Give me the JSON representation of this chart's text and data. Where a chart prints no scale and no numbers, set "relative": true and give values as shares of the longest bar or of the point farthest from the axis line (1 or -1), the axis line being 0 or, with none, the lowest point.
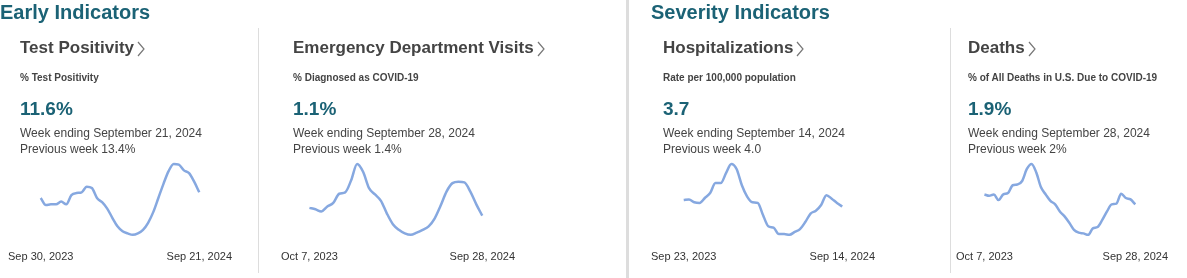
{
  "chart_data": [
    {
      "type": "line",
      "title": "Test Positivity",
      "subtitle": "% Test Positivity",
      "annotations": [
        "11.6%",
        "Week ending September 21, 2024",
        "Previous week 13.4%",
        "Early Indicators"
      ],
      "relative": true,
      "color": "#86a8e0",
      "categories": [
        "Sep 30, 2023",
        null,
        null,
        null,
        null,
        null,
        null,
        null,
        null,
        null,
        null,
        null,
        null,
        null,
        null,
        null,
        null,
        null,
        null,
        null,
        null,
        null,
        null,
        null,
        null,
        null,
        null,
        null,
        null,
        null,
        null,
        "Sep 21, 2024"
      ],
      "values": [
        0.52,
        0.42,
        0.43,
        0.43,
        0.47,
        0.43,
        0.56,
        0.59,
        0.6,
        0.68,
        0.66,
        0.52,
        0.46,
        0.37,
        0.24,
        0.12,
        0.05,
        0.02,
        0,
        0.02,
        0.07,
        0.17,
        0.32,
        0.52,
        0.72,
        0.9,
        1,
        0.99,
        0.91,
        0.87,
        0.75,
        0.6
      ]
    },
    {
      "type": "line",
      "title": "Emergency Department Visits",
      "subtitle": "% Diagnosed as COVID-19",
      "annotations": [
        "1.1%",
        "Week ending September 28, 2024",
        "Previous week 1.4%"
      ],
      "relative": true,
      "color": "#86a8e0",
      "categories": [
        "Oct 7, 2023",
        null,
        null,
        null,
        null,
        null,
        null,
        null,
        null,
        null,
        null,
        null,
        null,
        null,
        null,
        null,
        null,
        null,
        null,
        null,
        null,
        null,
        null,
        null,
        null,
        null,
        null,
        null,
        null,
        "Sep 28, 2024"
      ],
      "values": [
        0.38,
        0.36,
        0.33,
        0.4,
        0.45,
        0.58,
        0.6,
        0.77,
        1,
        0.89,
        0.66,
        0.57,
        0.48,
        0.3,
        0.15,
        0.07,
        0.02,
        0,
        0.03,
        0.07,
        0.12,
        0.23,
        0.41,
        0.61,
        0.73,
        0.75,
        0.74,
        0.61,
        0.43,
        0.27
      ]
    },
    {
      "type": "line",
      "title": "Hospitalizations",
      "subtitle": "Rate per 100,000 population",
      "annotations": [
        "3.7",
        "Week ending September 14, 2024",
        "Previous week 4.0",
        "Severity Indicators"
      ],
      "relative": true,
      "color": "#86a8e0",
      "categories": [
        "Sep 23, 2023",
        null,
        null,
        null,
        null,
        null,
        null,
        null,
        null,
        null,
        null,
        null,
        null,
        null,
        null,
        null,
        null,
        null,
        null,
        null,
        null,
        null,
        null,
        null,
        null,
        null,
        null,
        null,
        null,
        null,
        "Sep 14, 2024"
      ],
      "values": [
        0.49,
        0.5,
        0.46,
        0.45,
        0.52,
        0.59,
        0.73,
        0.73,
        0.87,
        1,
        0.93,
        0.7,
        0.54,
        0.46,
        0.45,
        0.28,
        0.12,
        0.1,
        0.01,
        0.01,
        0,
        0.04,
        0.08,
        0.18,
        0.3,
        0.34,
        0.42,
        0.56,
        0.51,
        0.45,
        0.4
      ]
    },
    {
      "type": "line",
      "title": "Deaths",
      "subtitle": "% of All Deaths in U.S. Due to COVID-19",
      "annotations": [
        "1.9%",
        "Week ending September 28, 2024",
        "Previous week 2%"
      ],
      "relative": true,
      "color": "#86a8e0",
      "categories": [
        "Oct 7, 2023",
        null,
        null,
        null,
        null,
        null,
        null,
        null,
        null,
        null,
        null,
        null,
        null,
        null,
        null,
        null,
        null,
        null,
        null,
        null,
        null,
        null,
        null,
        null,
        null,
        null,
        null,
        null,
        null,
        null,
        null,
        null,
        "Sep 28, 2024"
      ],
      "values": [
        0.57,
        0.55,
        0.57,
        0.49,
        0.57,
        0.59,
        0.7,
        0.71,
        0.76,
        0.93,
        1,
        0.88,
        0.67,
        0.57,
        0.48,
        0.43,
        0.33,
        0.26,
        0.17,
        0.07,
        0.03,
        0.02,
        0,
        0.09,
        0.11,
        0.21,
        0.33,
        0.43,
        0.44,
        0.58,
        0.52,
        0.5,
        0.43
      ]
    }
  ]
}
